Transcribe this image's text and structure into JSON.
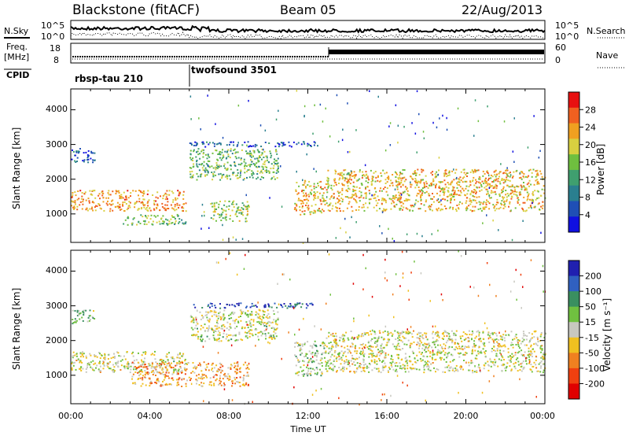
{
  "header": {
    "station": "Blackstone (fitACF)",
    "beam": "Beam 05",
    "date": "22/Aug/2013"
  },
  "summary": {
    "nsky_label": "N.Sky",
    "nsearch_label": "N.Search",
    "noise_ticks": [
      "10^5",
      "10^0"
    ],
    "freq_label": "Freq.",
    "freq_unit": "[MHz]",
    "freq_ticks": [
      "18",
      "8"
    ],
    "nave_label": "Nave",
    "nave_ticks": [
      "60",
      "0"
    ],
    "cpid_label": "CPID",
    "cpid_blocks": [
      {
        "name": "rbsp-tau 210",
        "start_hour": 0,
        "end_hour": 6
      },
      {
        "name": "twofsound 3501",
        "start_hour": 6,
        "end_hour": 24
      }
    ]
  },
  "colors": {
    "power": [
      "#1010e0",
      "#1f4fb5",
      "#2a7f8f",
      "#3f9f6f",
      "#6fbf3f",
      "#d8d040",
      "#f0a020",
      "#f06020",
      "#e81010"
    ],
    "velocity": [
      "#2020b0",
      "#3060c0",
      "#3a8f60",
      "#70c040",
      "#c8c8c0",
      "#f0c020",
      "#f08020",
      "#f04010",
      "#e00000"
    ]
  },
  "chart_data": [
    {
      "type": "heatmap",
      "panel": "power",
      "ylabel": "Slant Range [km]",
      "xlabel": "Time UT",
      "x_ticks": [
        "00:00",
        "04:00",
        "08:00",
        "12:00",
        "16:00",
        "20:00",
        "00:00"
      ],
      "x_range_hours": [
        0,
        24
      ],
      "y_ticks": [
        "1000",
        "2000",
        "3000",
        "4000"
      ],
      "y_range_km": [
        180,
        4600
      ],
      "colorbar": {
        "label": "Power [dB]",
        "ticks": [
          "4",
          "8",
          "12",
          "16",
          "20",
          "24",
          "28"
        ],
        "range": [
          0,
          30
        ]
      },
      "features": [
        {
          "start_hour": 0.0,
          "end_hour": 5.8,
          "range_km": [
            1100,
            1700
          ],
          "value": 22
        },
        {
          "start_hour": 0.0,
          "end_hour": 1.2,
          "range_km": [
            2500,
            2900
          ],
          "value": 6
        },
        {
          "start_hour": 2.6,
          "end_hour": 5.8,
          "range_km": [
            700,
            1000
          ],
          "value": 14
        },
        {
          "start_hour": 6.0,
          "end_hour": 10.5,
          "range_km": [
            2000,
            2900
          ],
          "value": 14
        },
        {
          "start_hour": 7.0,
          "end_hour": 9.0,
          "range_km": [
            800,
            1400
          ],
          "value": 16
        },
        {
          "start_hour": 6.0,
          "end_hour": 12.5,
          "range_km": [
            2950,
            3100
          ],
          "value": 6
        },
        {
          "start_hour": 11.3,
          "end_hour": 12.8,
          "range_km": [
            1000,
            2000
          ],
          "value": 20
        },
        {
          "start_hour": 12.8,
          "end_hour": 24.0,
          "range_km": [
            1100,
            2300
          ],
          "value": 20
        }
      ]
    },
    {
      "type": "heatmap",
      "panel": "velocity",
      "ylabel": "Slant Range [km]",
      "xlabel": "Time UT",
      "x_ticks": [
        "00:00",
        "04:00",
        "08:00",
        "12:00",
        "16:00",
        "20:00",
        "00:00"
      ],
      "x_range_hours": [
        0,
        24
      ],
      "y_ticks": [
        "1000",
        "2000",
        "3000",
        "4000"
      ],
      "y_range_km": [
        180,
        4600
      ],
      "colorbar": {
        "label": "Velocity [m s⁻¹]",
        "ticks": [
          "200",
          "100",
          "50",
          "15",
          "-15",
          "-50",
          "-100",
          "-200"
        ],
        "range": [
          -250,
          250
        ]
      },
      "features": [
        {
          "start_hour": 0.0,
          "end_hour": 5.8,
          "range_km": [
            1100,
            1700
          ],
          "value": 0
        },
        {
          "start_hour": 0.0,
          "end_hour": 1.2,
          "range_km": [
            2500,
            2900
          ],
          "value": 40
        },
        {
          "start_hour": 3.0,
          "end_hour": 9.0,
          "range_km": [
            700,
            1400
          ],
          "value": -80
        },
        {
          "start_hour": 6.0,
          "end_hour": 10.5,
          "range_km": [
            2000,
            2900
          ],
          "value": 5
        },
        {
          "start_hour": 6.0,
          "end_hour": 12.5,
          "range_km": [
            2950,
            3100
          ],
          "value": 180
        },
        {
          "start_hour": 11.3,
          "end_hour": 12.8,
          "range_km": [
            1000,
            2000
          ],
          "value": 30
        },
        {
          "start_hour": 12.8,
          "end_hour": 24.0,
          "range_km": [
            1100,
            2300
          ],
          "value": -5
        }
      ]
    }
  ]
}
